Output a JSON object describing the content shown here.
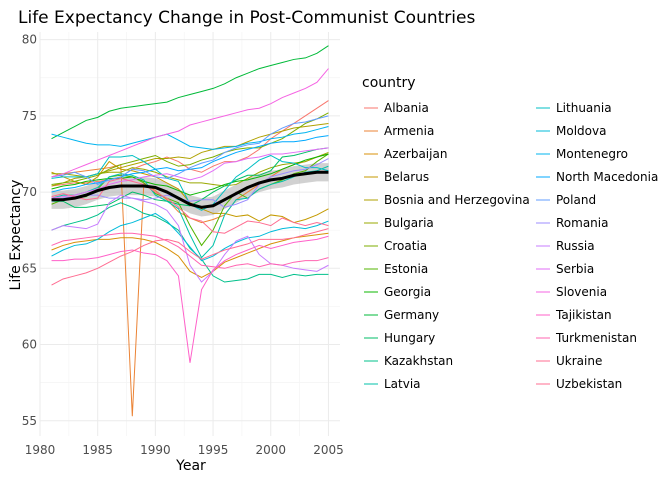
{
  "chart_data": {
    "type": "line",
    "title": "Life Expectancy Change in Post-Communist Countries",
    "xlabel": "Year",
    "ylabel": "Life Expectancy",
    "legend_title": "country",
    "legend_position": "right",
    "grid": true,
    "xlim": [
      1980,
      2006
    ],
    "ylim": [
      54,
      80.5
    ],
    "x_ticks": [
      1980,
      1985,
      1990,
      1995,
      2000,
      2005
    ],
    "y_ticks": [
      55,
      60,
      65,
      70,
      75,
      80
    ],
    "x": [
      1981,
      1982,
      1983,
      1984,
      1985,
      1986,
      1987,
      1988,
      1989,
      1990,
      1991,
      1992,
      1993,
      1994,
      1995,
      1996,
      1997,
      1998,
      1999,
      2000,
      2001,
      2002,
      2003,
      2004,
      2005
    ],
    "series": [
      {
        "name": "Albania",
        "color": "#F8766D",
        "values": [
          70.4,
          70.5,
          70.6,
          70.6,
          70.7,
          70.8,
          71.0,
          71.5,
          71.8,
          72.0,
          72.3,
          72.0,
          71.5,
          71.3,
          71.7,
          72.0,
          72.0,
          72.3,
          72.8,
          73.5,
          74.0,
          74.5,
          75.0,
          75.5,
          76.0
        ]
      },
      {
        "name": "Armenia",
        "color": "#EB8335",
        "values": [
          71.0,
          71.2,
          71.3,
          71.4,
          71.5,
          71.6,
          71.8,
          55.3,
          70.6,
          70.1,
          69.5,
          68.7,
          68.3,
          68.0,
          68.2,
          68.5,
          69.5,
          70.0,
          70.5,
          71.0,
          71.5,
          71.8,
          72.0,
          72.3,
          72.5
        ]
      },
      {
        "name": "Azerbaijan",
        "color": "#D8900A",
        "values": [
          66.2,
          66.5,
          66.7,
          66.8,
          66.9,
          66.9,
          67.0,
          67.0,
          66.9,
          66.7,
          66.3,
          65.8,
          64.8,
          64.4,
          64.8,
          65.4,
          65.7,
          66.0,
          66.3,
          66.6,
          66.8,
          67.0,
          67.1,
          67.2,
          67.3
        ]
      },
      {
        "name": "Belarus",
        "color": "#C49A00",
        "values": [
          71.3,
          71.0,
          70.7,
          70.5,
          71.0,
          72.0,
          71.5,
          71.4,
          71.2,
          71.0,
          70.6,
          70.2,
          69.3,
          68.9,
          68.6,
          68.6,
          68.4,
          68.5,
          68.1,
          68.5,
          68.4,
          68.0,
          68.2,
          68.5,
          68.9
        ]
      },
      {
        "name": "Bosnia and Herzegovina",
        "color": "#AFA100",
        "values": [
          70.4,
          70.6,
          70.9,
          71.0,
          71.2,
          71.4,
          71.6,
          71.8,
          72.0,
          72.2,
          72.2,
          72.3,
          72.2,
          72.6,
          72.8,
          73.0,
          73.0,
          73.3,
          73.6,
          73.8,
          74.0,
          74.2,
          74.3,
          74.4,
          74.5
        ]
      },
      {
        "name": "Bulgaria",
        "color": "#99A800",
        "values": [
          71.2,
          71.2,
          71.1,
          71.0,
          71.2,
          71.3,
          71.3,
          71.6,
          71.5,
          71.3,
          71.0,
          70.8,
          70.6,
          70.6,
          70.5,
          70.4,
          70.5,
          70.9,
          71.3,
          71.6,
          71.8,
          71.9,
          72.0,
          72.3,
          72.6
        ]
      },
      {
        "name": "Croatia",
        "color": "#7CAE00",
        "values": [
          70.5,
          70.6,
          70.7,
          70.9,
          71.1,
          71.5,
          71.8,
          72.0,
          72.2,
          72.4,
          72.0,
          71.7,
          71.8,
          72.1,
          72.3,
          72.6,
          72.8,
          72.9,
          72.9,
          73.2,
          73.5,
          74.0,
          74.5,
          74.8,
          75.2
        ]
      },
      {
        "name": "Estonia",
        "color": "#53B400",
        "values": [
          69.2,
          69.5,
          69.6,
          69.7,
          70.2,
          71.0,
          71.1,
          71.0,
          70.6,
          69.9,
          69.6,
          69.3,
          67.8,
          66.5,
          67.5,
          69.1,
          70.0,
          69.6,
          70.2,
          70.5,
          70.8,
          71.2,
          71.4,
          72.0,
          72.5
        ]
      },
      {
        "name": "Georgia",
        "color": "#0CB702",
        "values": [
          70.2,
          70.4,
          70.5,
          70.7,
          70.8,
          70.9,
          70.9,
          71.0,
          70.7,
          70.5,
          70.4,
          70.1,
          69.8,
          70.0,
          70.2,
          70.5,
          70.7,
          70.8,
          71.0,
          71.2,
          71.5,
          71.8,
          72.1,
          72.3,
          72.5
        ]
      },
      {
        "name": "Germany",
        "color": "#00BA38",
        "values": [
          73.5,
          73.9,
          74.3,
          74.7,
          74.9,
          75.3,
          75.5,
          75.6,
          75.7,
          75.8,
          75.9,
          76.2,
          76.4,
          76.6,
          76.8,
          77.1,
          77.5,
          77.8,
          78.1,
          78.3,
          78.5,
          78.7,
          78.8,
          79.1,
          79.6
        ]
      },
      {
        "name": "Hungary",
        "color": "#00BE67",
        "values": [
          69.4,
          69.4,
          69.0,
          69.0,
          69.1,
          69.2,
          69.6,
          70.0,
          69.8,
          69.5,
          69.4,
          69.2,
          69.1,
          69.5,
          70.0,
          70.4,
          70.8,
          71.1,
          71.1,
          71.4,
          72.3,
          72.4,
          72.6,
          72.8,
          72.9
        ]
      },
      {
        "name": "Kazakhstan",
        "color": "#00C08B",
        "values": [
          67.5,
          67.8,
          68.0,
          68.2,
          68.5,
          69.0,
          69.3,
          69.0,
          68.6,
          68.4,
          68.0,
          67.5,
          66.3,
          65.6,
          64.5,
          64.1,
          64.2,
          64.3,
          64.6,
          64.6,
          64.4,
          64.6,
          64.5,
          64.6,
          64.6
        ]
      },
      {
        "name": "Latvia",
        "color": "#00C1AA",
        "values": [
          69.6,
          69.8,
          69.8,
          70.0,
          70.3,
          71.0,
          71.2,
          71.1,
          70.8,
          69.8,
          69.4,
          68.9,
          67.2,
          65.7,
          66.5,
          68.5,
          69.5,
          69.6,
          70.2,
          70.5,
          70.7,
          71.0,
          71.3,
          71.4,
          71.7
        ]
      },
      {
        "name": "Lithuania",
        "color": "#00BFC4",
        "values": [
          70.9,
          71.0,
          71.0,
          71.0,
          71.2,
          72.3,
          72.3,
          72.4,
          72.0,
          71.5,
          70.9,
          70.7,
          69.2,
          68.8,
          69.2,
          70.1,
          71.0,
          71.5,
          72.1,
          72.4,
          72.0,
          71.9,
          71.6,
          71.6,
          71.4
        ]
      },
      {
        "name": "Moldova",
        "color": "#00BBDA",
        "values": [
          65.8,
          66.2,
          66.5,
          66.6,
          66.9,
          67.4,
          67.8,
          68.0,
          68.3,
          68.6,
          68.1,
          67.3,
          66.4,
          65.5,
          65.8,
          66.3,
          66.7,
          67.0,
          67.1,
          67.4,
          67.6,
          67.7,
          67.6,
          67.8,
          68.1
        ]
      },
      {
        "name": "Montenegro",
        "color": "#00B4EF",
        "values": [
          73.8,
          73.6,
          73.4,
          73.2,
          73.1,
          73.1,
          73.0,
          73.2,
          73.4,
          73.6,
          73.8,
          73.4,
          73.0,
          72.9,
          72.8,
          72.9,
          73.0,
          73.2,
          73.3,
          73.5,
          73.6,
          73.8,
          73.9,
          74.1,
          74.3
        ]
      },
      {
        "name": "North Macedonia",
        "color": "#00A9FF",
        "values": [
          70.0,
          70.2,
          70.3,
          70.5,
          70.6,
          70.8,
          71.0,
          71.2,
          71.3,
          71.5,
          71.6,
          71.4,
          71.5,
          71.6,
          72.0,
          72.3,
          72.6,
          72.8,
          73.0,
          73.2,
          73.3,
          73.3,
          73.4,
          73.6,
          73.7
        ]
      },
      {
        "name": "Poland",
        "color": "#619CFF",
        "values": [
          71.0,
          71.1,
          71.3,
          71.0,
          70.5,
          70.8,
          71.0,
          71.5,
          71.4,
          71.0,
          70.9,
          71.2,
          71.6,
          71.9,
          72.1,
          72.6,
          72.9,
          73.1,
          73.2,
          73.8,
          74.2,
          74.5,
          74.6,
          74.8,
          75.0
        ]
      },
      {
        "name": "Romania",
        "color": "#9C8DFF",
        "values": [
          69.4,
          69.6,
          69.7,
          69.8,
          69.8,
          69.6,
          69.6,
          69.6,
          69.5,
          69.6,
          69.8,
          69.6,
          69.4,
          69.5,
          69.5,
          69.0,
          69.2,
          69.5,
          70.5,
          71.0,
          71.2,
          71.4,
          71.5,
          71.8,
          72.2
        ]
      },
      {
        "name": "Russia",
        "color": "#C77CFF",
        "values": [
          67.5,
          67.8,
          67.7,
          67.6,
          67.9,
          69.3,
          69.8,
          69.6,
          69.4,
          69.2,
          68.8,
          67.8,
          65.2,
          64.1,
          64.8,
          65.9,
          66.8,
          67.1,
          65.9,
          65.3,
          65.2,
          65.0,
          64.9,
          64.8,
          65.2
        ]
      },
      {
        "name": "Serbia",
        "color": "#E26EF7",
        "values": [
          69.6,
          69.7,
          69.8,
          70.0,
          70.2,
          70.5,
          70.7,
          70.8,
          71.0,
          71.1,
          71.2,
          71.0,
          70.8,
          71.0,
          71.4,
          71.9,
          72.0,
          72.2,
          72.3,
          72.5,
          72.5,
          72.6,
          72.7,
          72.8,
          72.9
        ]
      },
      {
        "name": "Slovenia",
        "color": "#F564E3",
        "values": [
          71.0,
          71.2,
          71.5,
          71.8,
          72.1,
          72.4,
          72.7,
          73.0,
          73.3,
          73.6,
          73.8,
          74.0,
          74.4,
          74.6,
          74.8,
          75.0,
          75.2,
          75.4,
          75.5,
          75.8,
          76.2,
          76.5,
          76.8,
          77.2,
          78.1
        ]
      },
      {
        "name": "Tajikistan",
        "color": "#FF61C9",
        "values": [
          65.5,
          65.5,
          65.6,
          65.6,
          65.7,
          65.9,
          66.1,
          66.2,
          66.0,
          65.9,
          65.5,
          64.5,
          58.8,
          63.6,
          64.9,
          65.5,
          65.9,
          66.2,
          66.5,
          66.3,
          66.5,
          66.7,
          66.8,
          66.9,
          67.1
        ]
      },
      {
        "name": "Turkmenistan",
        "color": "#FF64B0",
        "values": [
          66.5,
          66.8,
          66.9,
          67.0,
          67.1,
          67.2,
          67.3,
          67.3,
          67.2,
          67.1,
          66.8,
          66.4,
          65.8,
          65.2,
          65.1,
          65.0,
          65.2,
          65.3,
          65.1,
          65.3,
          65.2,
          65.4,
          65.5,
          65.5,
          65.7
        ]
      },
      {
        "name": "Ukraine",
        "color": "#FF6C91",
        "values": [
          69.7,
          69.9,
          69.7,
          69.5,
          69.6,
          70.7,
          70.9,
          70.7,
          70.5,
          70.0,
          69.6,
          69.0,
          68.3,
          68.1,
          67.4,
          67.3,
          67.7,
          68.1,
          68.0,
          67.8,
          68.3,
          68.0,
          67.8,
          68.0,
          67.8
        ]
      },
      {
        "name": "Uzbekistan",
        "color": "#FF6C91",
        "values": [
          63.9,
          64.3,
          64.5,
          64.7,
          65.0,
          65.4,
          65.8,
          66.1,
          66.5,
          66.8,
          66.9,
          66.7,
          66.1,
          65.6,
          65.9,
          66.2,
          66.4,
          66.6,
          66.9,
          66.9,
          66.9,
          67.0,
          67.2,
          67.4,
          67.6
        ]
      }
    ],
    "trend": {
      "values": [
        69.5,
        69.5,
        69.6,
        69.8,
        70.1,
        70.3,
        70.4,
        70.4,
        70.4,
        70.3,
        70.0,
        69.6,
        69.2,
        69.0,
        69.1,
        69.5,
        69.9,
        70.3,
        70.6,
        70.8,
        70.9,
        71.1,
        71.2,
        71.3,
        71.3
      ],
      "band": 0.6
    }
  }
}
